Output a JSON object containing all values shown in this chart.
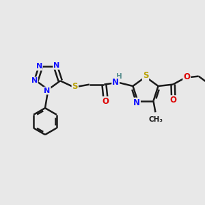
{
  "bg_color": "#e8e8e8",
  "bond_color": "#1a1a1a",
  "bond_width": 1.8,
  "atom_colors": {
    "N_tz": "#1010ff",
    "N_th": "#1010ff",
    "S": "#b8a000",
    "O": "#dd0000",
    "H": "#5a9090",
    "C": "#1a1a1a"
  },
  "figsize": [
    3.0,
    3.0
  ],
  "dpi": 100,
  "xlim": [
    0,
    10
  ],
  "ylim": [
    0,
    10
  ]
}
